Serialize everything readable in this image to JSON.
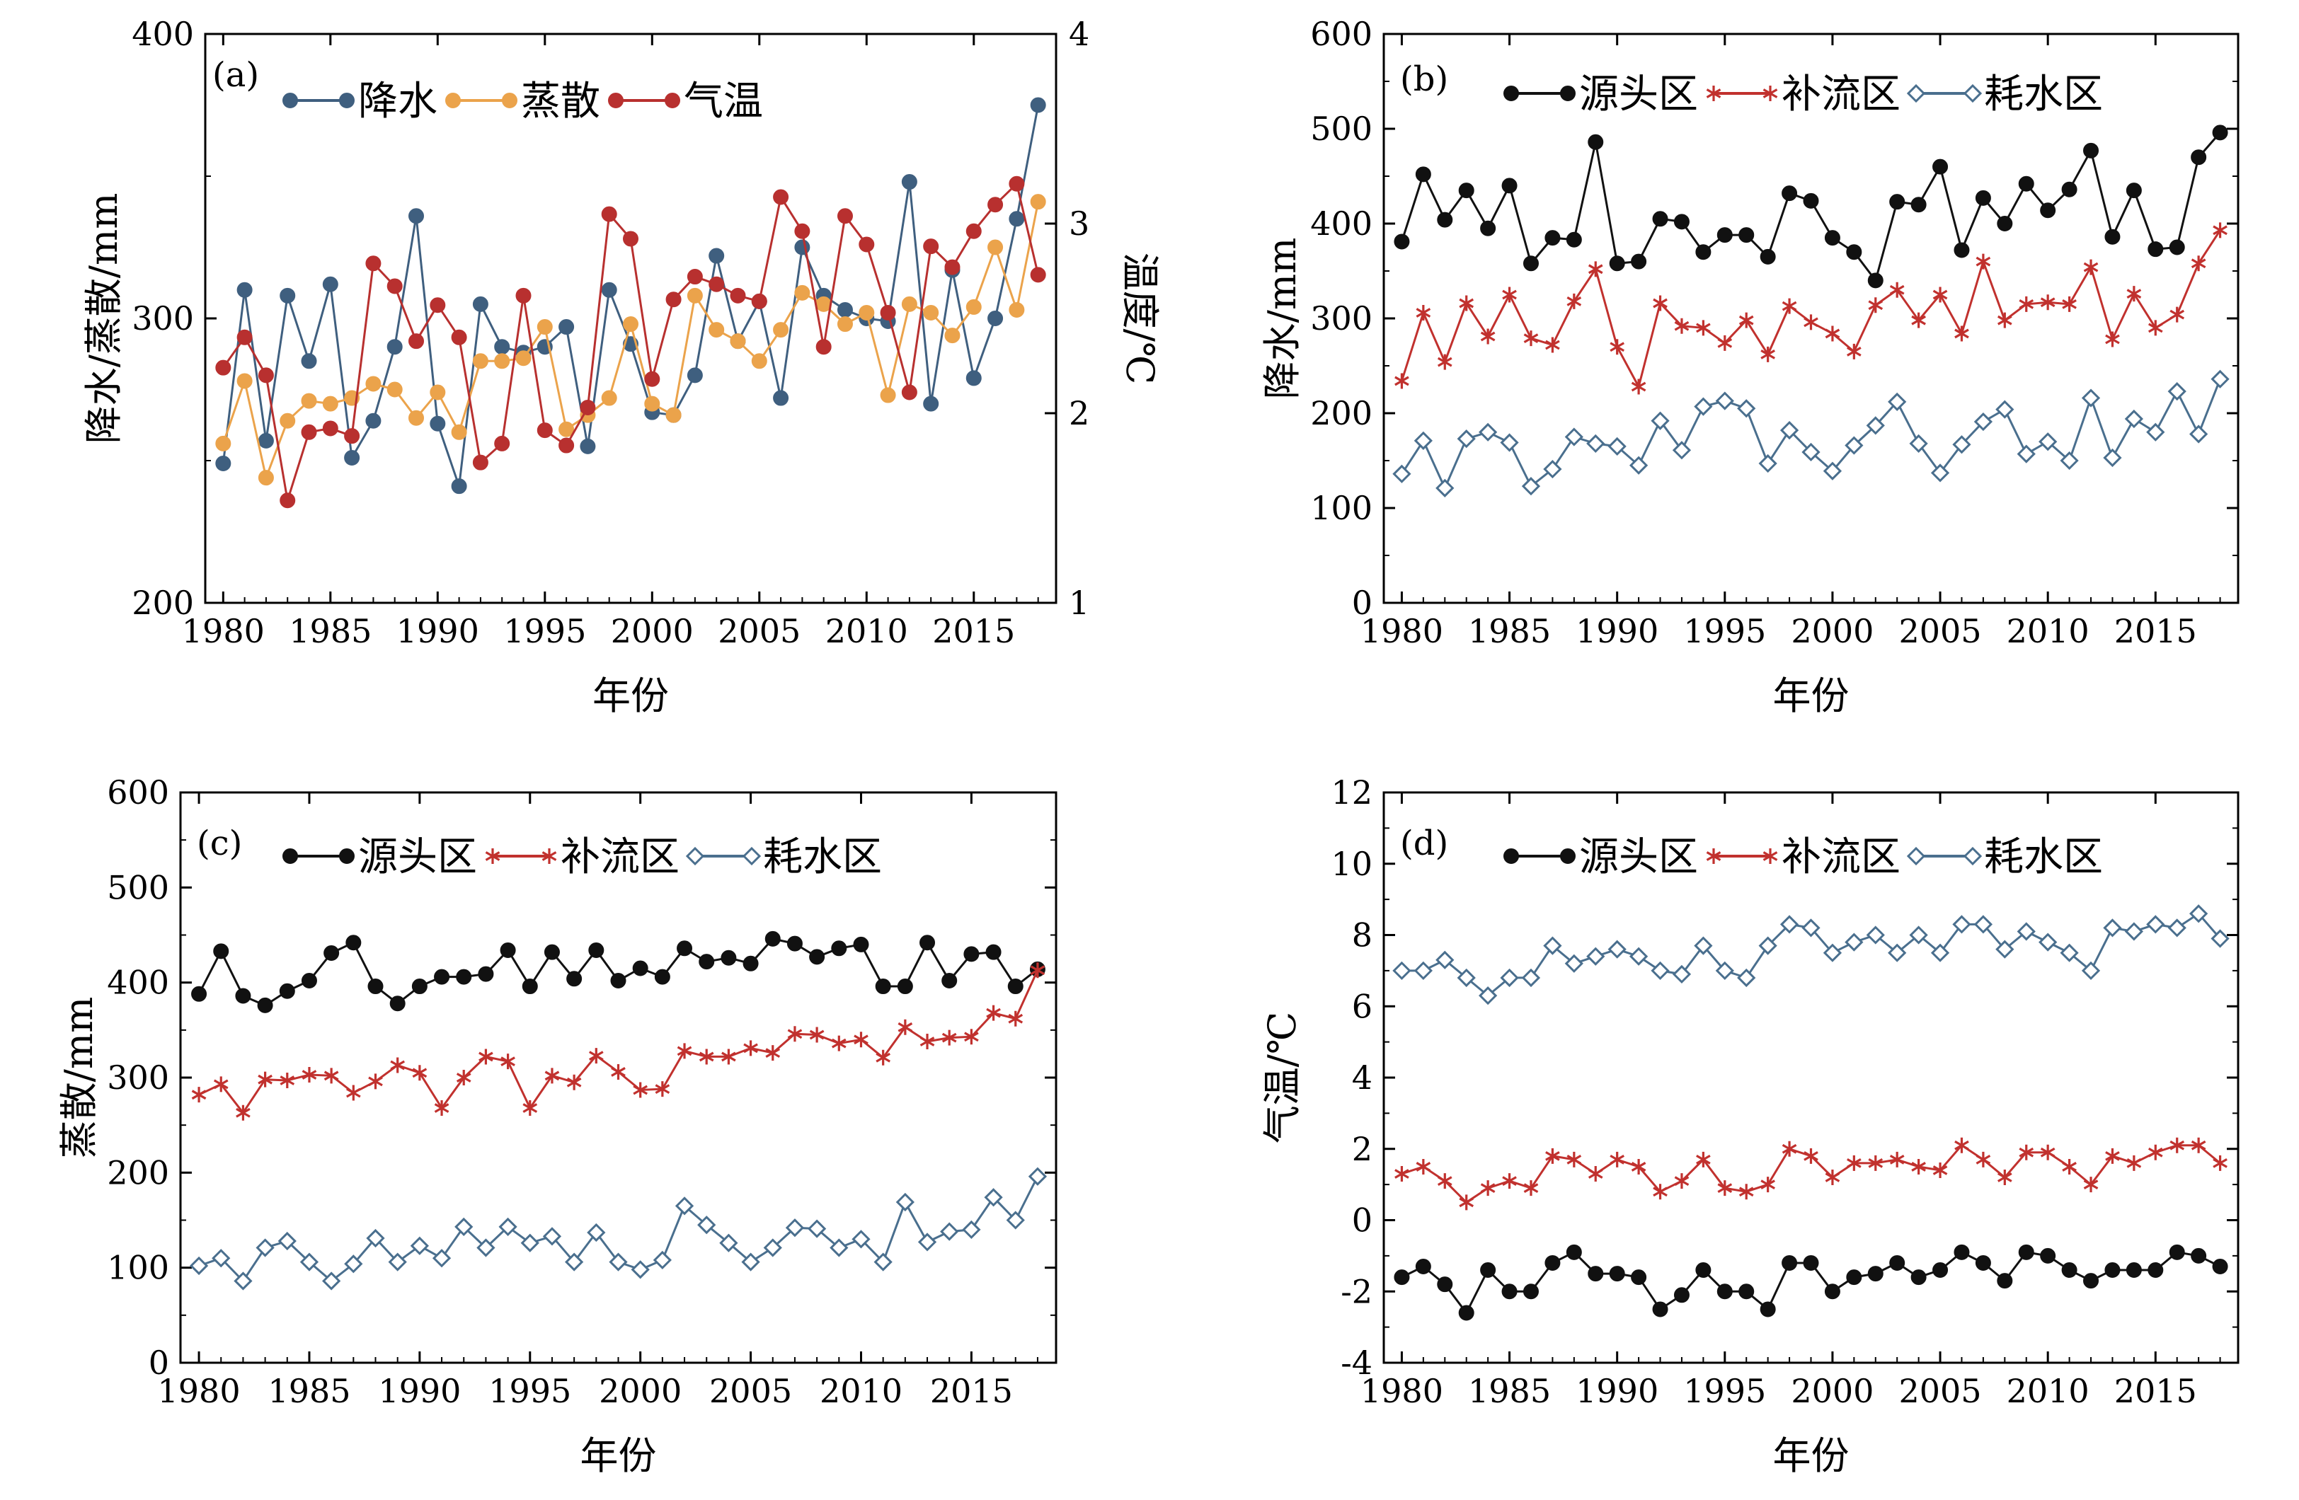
{
  "chart_data": [
    {
      "panel": "(a)",
      "type": "line",
      "xlabel": "年份",
      "ylabel": "降水/蒸散/mm",
      "y2label": "温度/℃",
      "xlim": [
        1980,
        2018
      ],
      "ylim": [
        200,
        400
      ],
      "y2lim": [
        1,
        4
      ],
      "xticks": [
        1980,
        1985,
        1990,
        1995,
        2000,
        2005,
        2010,
        2015
      ],
      "yticks": [
        200,
        300,
        400
      ],
      "y2ticks": [
        1,
        2,
        3,
        4
      ],
      "legend_position": "top-left",
      "grid": false,
      "x": [
        1980,
        1981,
        1982,
        1983,
        1984,
        1985,
        1986,
        1987,
        1988,
        1989,
        1990,
        1991,
        1992,
        1993,
        1994,
        1995,
        1996,
        1997,
        1998,
        1999,
        2000,
        2001,
        2002,
        2003,
        2004,
        2005,
        2006,
        2007,
        2008,
        2009,
        2010,
        2011,
        2012,
        2013,
        2014,
        2015,
        2016,
        2017,
        2018
      ],
      "series": [
        {
          "name": "降水",
          "axis": "left",
          "color": "#3f5f7f",
          "marker": "circle",
          "values": [
            249,
            310,
            257,
            308,
            285,
            312,
            251,
            264,
            290,
            336,
            263,
            241,
            305,
            290,
            288,
            290,
            297,
            255,
            310,
            291,
            267,
            266,
            280,
            322,
            292,
            306,
            272,
            325,
            308,
            303,
            300,
            299,
            348,
            270,
            317,
            279,
            300,
            335,
            375
          ]
        },
        {
          "name": "蒸散",
          "axis": "left",
          "color": "#eba34b",
          "marker": "circle",
          "values": [
            256,
            278,
            244,
            264,
            271,
            270,
            272,
            277,
            275,
            265,
            274,
            260,
            285,
            285,
            286,
            297,
            261,
            266,
            272,
            298,
            270,
            266,
            308,
            296,
            292,
            285,
            296,
            309,
            305,
            298,
            302,
            273,
            305,
            302,
            294,
            304,
            325,
            303,
            341
          ]
        },
        {
          "name": "气温",
          "axis": "right",
          "color": "#b8302f",
          "marker": "circle",
          "values": [
            2.24,
            2.4,
            2.2,
            1.54,
            1.9,
            1.92,
            1.88,
            2.79,
            2.67,
            2.38,
            2.57,
            2.4,
            1.74,
            1.84,
            2.62,
            1.91,
            1.83,
            2.03,
            3.05,
            2.92,
            2.18,
            2.6,
            2.72,
            2.68,
            2.62,
            2.59,
            3.14,
            2.96,
            2.35,
            3.04,
            2.89,
            2.53,
            2.11,
            2.88,
            2.77,
            2.96,
            3.1,
            3.21,
            2.73
          ]
        }
      ]
    },
    {
      "panel": "(b)",
      "type": "line",
      "xlabel": "年份",
      "ylabel": "降水/mm",
      "xlim": [
        1980,
        2018
      ],
      "ylim": [
        0,
        600
      ],
      "xticks": [
        1980,
        1985,
        1990,
        1995,
        2000,
        2005,
        2010,
        2015
      ],
      "yticks": [
        0,
        100,
        200,
        300,
        400,
        500,
        600
      ],
      "legend_position": "top",
      "grid": false,
      "x": [
        1980,
        1981,
        1982,
        1983,
        1984,
        1985,
        1986,
        1987,
        1988,
        1989,
        1990,
        1991,
        1992,
        1993,
        1994,
        1995,
        1996,
        1997,
        1998,
        1999,
        2000,
        2001,
        2002,
        2003,
        2004,
        2005,
        2006,
        2007,
        2008,
        2009,
        2010,
        2011,
        2012,
        2013,
        2014,
        2015,
        2016,
        2017,
        2018
      ],
      "series": [
        {
          "name": "源头区",
          "color": "#111111",
          "marker": "circle",
          "values": [
            381,
            452,
            404,
            435,
            395,
            440,
            358,
            385,
            383,
            486,
            358,
            360,
            405,
            402,
            370,
            388,
            388,
            365,
            432,
            424,
            385,
            370,
            340,
            423,
            420,
            460,
            372,
            427,
            400,
            442,
            414,
            436,
            477,
            386,
            435,
            373,
            375,
            470,
            496
          ]
        },
        {
          "name": "补流区",
          "color": "#c1312e",
          "marker": "asterisk",
          "values": [
            234,
            306,
            254,
            316,
            281,
            325,
            279,
            272,
            318,
            352,
            270,
            228,
            316,
            292,
            290,
            274,
            298,
            262,
            313,
            296,
            284,
            265,
            314,
            330,
            298,
            325,
            284,
            360,
            298,
            315,
            317,
            315,
            354,
            278,
            326,
            290,
            304,
            358,
            393
          ]
        },
        {
          "name": "耗水区",
          "color": "#4a6f8e",
          "marker": "diamond",
          "values": [
            136,
            171,
            121,
            173,
            180,
            169,
            123,
            141,
            175,
            168,
            165,
            145,
            192,
            161,
            207,
            213,
            205,
            147,
            182,
            159,
            139,
            166,
            187,
            212,
            168,
            137,
            167,
            191,
            204,
            157,
            170,
            150,
            216,
            153,
            194,
            180,
            223,
            178,
            236
          ]
        }
      ]
    },
    {
      "panel": "(c)",
      "type": "line",
      "xlabel": "年份",
      "ylabel": "蒸散/mm",
      "xlim": [
        1980,
        2018
      ],
      "ylim": [
        0,
        600
      ],
      "xticks": [
        1980,
        1985,
        1990,
        1995,
        2000,
        2005,
        2010,
        2015
      ],
      "yticks": [
        0,
        100,
        200,
        300,
        400,
        500,
        600
      ],
      "legend_position": "top",
      "grid": false,
      "x": [
        1980,
        1981,
        1982,
        1983,
        1984,
        1985,
        1986,
        1987,
        1988,
        1989,
        1990,
        1991,
        1992,
        1993,
        1994,
        1995,
        1996,
        1997,
        1998,
        1999,
        2000,
        2001,
        2002,
        2003,
        2004,
        2005,
        2006,
        2007,
        2008,
        2009,
        2010,
        2011,
        2012,
        2013,
        2014,
        2015,
        2016,
        2017,
        2018
      ],
      "series": [
        {
          "name": "源头区",
          "color": "#111111",
          "marker": "circle",
          "values": [
            388,
            433,
            386,
            376,
            391,
            402,
            431,
            442,
            396,
            378,
            396,
            406,
            406,
            409,
            434,
            396,
            432,
            404,
            434,
            402,
            415,
            406,
            436,
            422,
            426,
            420,
            446,
            441,
            427,
            436,
            440,
            396,
            396,
            442,
            402,
            430,
            432,
            396,
            414
          ]
        },
        {
          "name": "补流区",
          "color": "#c1312e",
          "marker": "asterisk",
          "values": [
            282,
            293,
            263,
            298,
            297,
            303,
            302,
            284,
            296,
            313,
            305,
            268,
            300,
            322,
            317,
            268,
            302,
            295,
            323,
            306,
            287,
            288,
            328,
            322,
            322,
            331,
            326,
            346,
            345,
            336,
            340,
            321,
            353,
            338,
            342,
            343,
            368,
            362,
            413
          ]
        },
        {
          "name": "耗水区",
          "color": "#4a6f8e",
          "marker": "diamond",
          "values": [
            102,
            110,
            86,
            121,
            128,
            106,
            86,
            104,
            131,
            106,
            123,
            110,
            143,
            121,
            143,
            126,
            133,
            106,
            137,
            106,
            98,
            108,
            165,
            145,
            126,
            106,
            121,
            142,
            141,
            121,
            130,
            106,
            169,
            127,
            138,
            140,
            174,
            150,
            196
          ]
        }
      ]
    },
    {
      "panel": "(d)",
      "type": "line",
      "xlabel": "年份",
      "ylabel": "气温/℃",
      "xlim": [
        1980,
        2018
      ],
      "ylim": [
        -4,
        12
      ],
      "xticks": [
        1980,
        1985,
        1990,
        1995,
        2000,
        2005,
        2010,
        2015
      ],
      "yticks": [
        -4,
        -2,
        0,
        2,
        4,
        6,
        8,
        10,
        12
      ],
      "legend_position": "top",
      "grid": false,
      "x": [
        1980,
        1981,
        1982,
        1983,
        1984,
        1985,
        1986,
        1987,
        1988,
        1989,
        1990,
        1991,
        1992,
        1993,
        1994,
        1995,
        1996,
        1997,
        1998,
        1999,
        2000,
        2001,
        2002,
        2003,
        2004,
        2005,
        2006,
        2007,
        2008,
        2009,
        2010,
        2011,
        2012,
        2013,
        2014,
        2015,
        2016,
        2017,
        2018
      ],
      "series": [
        {
          "name": "源头区",
          "color": "#111111",
          "marker": "circle",
          "values": [
            -1.6,
            -1.3,
            -1.8,
            -2.6,
            -1.4,
            -2.0,
            -2.0,
            -1.2,
            -0.9,
            -1.5,
            -1.5,
            -1.6,
            -2.5,
            -2.1,
            -1.4,
            -2.0,
            -2.0,
            -2.5,
            -1.2,
            -1.2,
            -2.0,
            -1.6,
            -1.5,
            -1.2,
            -1.6,
            -1.4,
            -0.9,
            -1.2,
            -1.7,
            -0.9,
            -1.0,
            -1.4,
            -1.7,
            -1.4,
            -1.4,
            -1.4,
            -0.9,
            -1.0,
            -1.3
          ]
        },
        {
          "name": "补流区",
          "color": "#c1312e",
          "marker": "asterisk",
          "values": [
            1.3,
            1.5,
            1.1,
            0.5,
            0.9,
            1.1,
            0.9,
            1.8,
            1.7,
            1.3,
            1.7,
            1.5,
            0.8,
            1.1,
            1.7,
            0.9,
            0.8,
            1.0,
            2.0,
            1.8,
            1.2,
            1.6,
            1.6,
            1.7,
            1.5,
            1.4,
            2.1,
            1.7,
            1.2,
            1.9,
            1.9,
            1.5,
            1.0,
            1.8,
            1.6,
            1.9,
            2.1,
            2.1,
            1.6
          ]
        },
        {
          "name": "耗水区",
          "color": "#4a6f8e",
          "marker": "diamond",
          "values": [
            7.0,
            7.0,
            7.3,
            6.8,
            6.3,
            6.8,
            6.8,
            7.7,
            7.2,
            7.4,
            7.6,
            7.4,
            7.0,
            6.9,
            7.7,
            7.0,
            6.8,
            7.7,
            8.3,
            8.2,
            7.5,
            7.8,
            8.0,
            7.5,
            8.0,
            7.5,
            8.3,
            8.3,
            7.6,
            8.1,
            7.8,
            7.5,
            7.0,
            8.2,
            8.1,
            8.3,
            8.2,
            8.6,
            7.9
          ]
        }
      ]
    }
  ]
}
